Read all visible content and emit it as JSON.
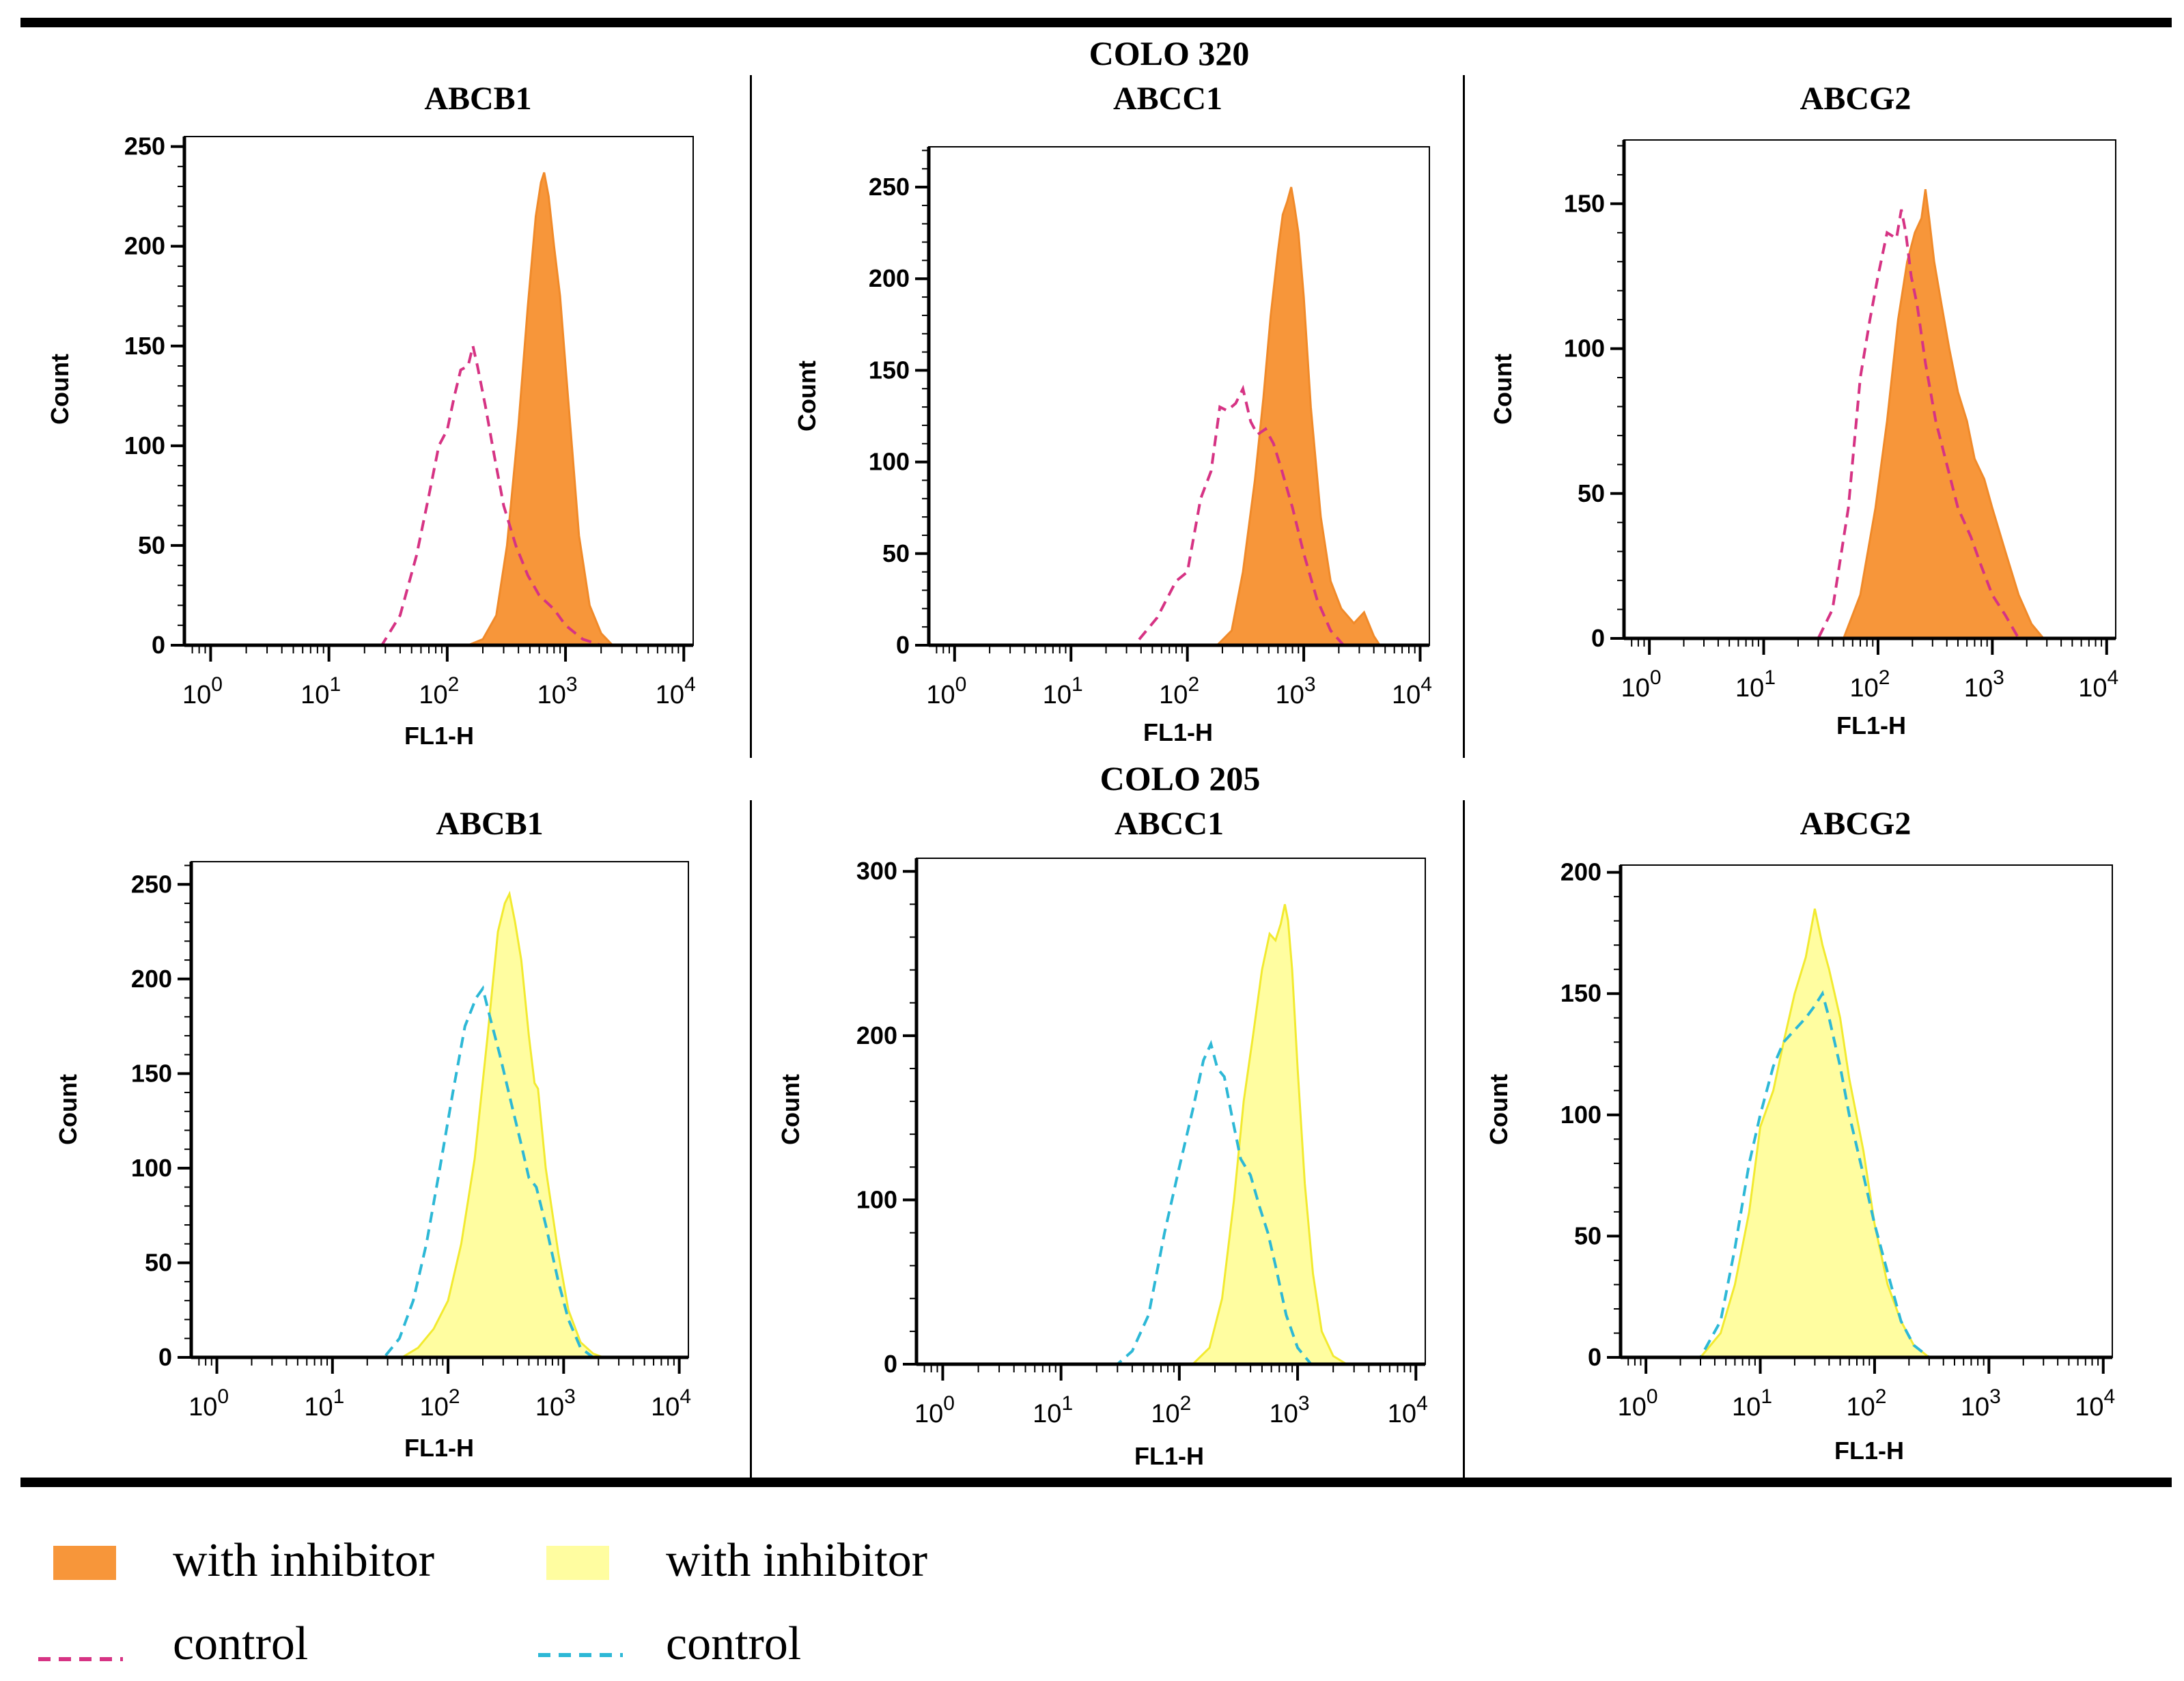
{
  "groups": [
    {
      "title": "COLO 320"
    },
    {
      "title": "COLO 205"
    }
  ],
  "colors": {
    "orange_fill": "#F7963A",
    "orange_edge": "#F08A2A",
    "magenta_dash": "#D63384",
    "yellow_fill": "#FFFDA0",
    "yellow_edge": "#F2EA30",
    "cyan_dash": "#2DB8D6"
  },
  "legend": [
    {
      "label": "with inhibitor",
      "kind": "fill",
      "color": "#F7963A"
    },
    {
      "label": "control",
      "kind": "dash",
      "color": "#D63384"
    },
    {
      "label": "with inhibitor",
      "kind": "fill",
      "color": "#FFFDA0"
    },
    {
      "label": "control",
      "kind": "dash",
      "color": "#2DB8D6"
    }
  ],
  "chart_data": [
    {
      "type": "area",
      "group": "COLO 320",
      "title": "ABCB1",
      "xlabel": "FL1-H",
      "ylabel": "Count",
      "x_scale": "log",
      "xlim": [
        0.6,
        12000
      ],
      "ylim": [
        0,
        255
      ],
      "yticks": [
        0,
        50,
        100,
        150,
        200,
        250
      ],
      "xticks": [
        {
          "base": "10",
          "exp": "0"
        },
        {
          "base": "10",
          "exp": "1"
        },
        {
          "base": "10",
          "exp": "2"
        },
        {
          "base": "10",
          "exp": "3"
        },
        {
          "base": "10",
          "exp": "4"
        }
      ],
      "series": [
        {
          "name": "with inhibitor",
          "style": "fill",
          "fill": "#F7963A",
          "stroke": "#F08A2A",
          "x": [
            0.6,
            150,
            200,
            260,
            320,
            400,
            480,
            560,
            620,
            660,
            720,
            800,
            900,
            1000,
            1150,
            1300,
            1600,
            2000,
            2500,
            12000
          ],
          "y": [
            0,
            0,
            3,
            15,
            50,
            110,
            170,
            215,
            232,
            237,
            225,
            200,
            175,
            140,
            95,
            55,
            20,
            6,
            0,
            0
          ]
        },
        {
          "name": "control",
          "style": "dash",
          "stroke": "#D63384",
          "x": [
            0.6,
            28,
            40,
            55,
            70,
            85,
            100,
            115,
            130,
            150,
            165,
            180,
            210,
            250,
            300,
            380,
            480,
            600,
            800,
            1000,
            1400,
            2000,
            12000
          ],
          "y": [
            0,
            0,
            15,
            45,
            75,
            100,
            108,
            125,
            138,
            140,
            150,
            140,
            120,
            95,
            70,
            50,
            35,
            25,
            18,
            10,
            3,
            0,
            0
          ]
        }
      ]
    },
    {
      "type": "area",
      "group": "COLO 320",
      "title": "ABCC1",
      "xlabel": "FL1-H",
      "ylabel": "Count",
      "x_scale": "log",
      "xlim": [
        0.6,
        12000
      ],
      "ylim": [
        0,
        272
      ],
      "yticks": [
        0,
        50,
        100,
        150,
        200,
        250
      ],
      "xticks": [
        {
          "base": "10",
          "exp": "0"
        },
        {
          "base": "10",
          "exp": "1"
        },
        {
          "base": "10",
          "exp": "2"
        },
        {
          "base": "10",
          "exp": "3"
        },
        {
          "base": "10",
          "exp": "4"
        }
      ],
      "series": [
        {
          "name": "with inhibitor",
          "style": "fill",
          "fill": "#F7963A",
          "stroke": "#F08A2A",
          "x": [
            0.6,
            180,
            240,
            300,
            380,
            450,
            520,
            600,
            660,
            720,
            780,
            830,
            900,
            1000,
            1150,
            1400,
            1700,
            2100,
            2700,
            3300,
            4000,
            4500,
            12000
          ],
          "y": [
            0,
            0,
            8,
            40,
            90,
            135,
            180,
            215,
            235,
            242,
            250,
            240,
            225,
            190,
            130,
            70,
            35,
            20,
            12,
            18,
            5,
            0,
            0
          ]
        },
        {
          "name": "control",
          "style": "dash",
          "stroke": "#D63384",
          "x": [
            0.6,
            35,
            55,
            80,
            100,
            130,
            160,
            190,
            220,
            260,
            300,
            350,
            400,
            470,
            550,
            650,
            800,
            1000,
            1300,
            1700,
            2200,
            12000
          ],
          "y": [
            0,
            0,
            15,
            35,
            40,
            80,
            95,
            130,
            128,
            132,
            140,
            122,
            115,
            118,
            110,
            95,
            75,
            50,
            25,
            8,
            0,
            0
          ]
        }
      ]
    },
    {
      "type": "area",
      "group": "COLO 320",
      "title": "ABCG2",
      "xlabel": "FL1-H",
      "ylabel": "Count",
      "x_scale": "log",
      "xlim": [
        0.6,
        12000
      ],
      "ylim": [
        0,
        172
      ],
      "yticks": [
        0,
        50,
        100,
        150
      ],
      "xticks": [
        {
          "base": "10",
          "exp": "0"
        },
        {
          "base": "10",
          "exp": "1"
        },
        {
          "base": "10",
          "exp": "2"
        },
        {
          "base": "10",
          "exp": "3"
        },
        {
          "base": "10",
          "exp": "4"
        }
      ],
      "series": [
        {
          "name": "with inhibitor",
          "style": "fill",
          "fill": "#F7963A",
          "stroke": "#F08A2A",
          "x": [
            0.6,
            50,
            70,
            95,
            120,
            150,
            180,
            210,
            240,
            260,
            280,
            310,
            360,
            420,
            500,
            600,
            700,
            850,
            1000,
            1300,
            1700,
            2200,
            2800,
            12000
          ],
          "y": [
            0,
            0,
            15,
            45,
            75,
            110,
            130,
            140,
            145,
            155,
            145,
            130,
            115,
            100,
            85,
            75,
            62,
            55,
            45,
            30,
            15,
            5,
            0,
            0
          ]
        },
        {
          "name": "control",
          "style": "dash",
          "stroke": "#D63384",
          "x": [
            0.6,
            30,
            40,
            55,
            70,
            85,
            100,
            120,
            145,
            160,
            175,
            195,
            220,
            260,
            320,
            400,
            500,
            650,
            800,
            1000,
            1300,
            1700,
            12000
          ],
          "y": [
            0,
            0,
            10,
            45,
            90,
            110,
            125,
            140,
            138,
            148,
            140,
            125,
            115,
            95,
            75,
            60,
            45,
            35,
            25,
            15,
            8,
            0,
            0
          ]
        }
      ]
    },
    {
      "type": "area",
      "group": "COLO 205",
      "title": "ABCB1",
      "xlabel": "FL1-H",
      "ylabel": "Count",
      "x_scale": "log",
      "xlim": [
        0.6,
        12000
      ],
      "ylim": [
        0,
        262
      ],
      "yticks": [
        0,
        50,
        100,
        150,
        200,
        250
      ],
      "xticks": [
        {
          "base": "10",
          "exp": "0"
        },
        {
          "base": "10",
          "exp": "1"
        },
        {
          "base": "10",
          "exp": "2"
        },
        {
          "base": "10",
          "exp": "3"
        },
        {
          "base": "10",
          "exp": "4"
        }
      ],
      "series": [
        {
          "name": "with inhibitor",
          "style": "fill",
          "fill": "#FFFDA0",
          "stroke": "#F2EA30",
          "x": [
            0.6,
            40,
            55,
            75,
            100,
            130,
            170,
            220,
            270,
            310,
            340,
            380,
            430,
            500,
            560,
            600,
            700,
            900,
            1100,
            1400,
            1800,
            2200,
            12000
          ],
          "y": [
            0,
            0,
            5,
            15,
            30,
            60,
            105,
            170,
            225,
            240,
            245,
            230,
            210,
            170,
            145,
            142,
            100,
            55,
            25,
            8,
            2,
            0,
            0
          ]
        },
        {
          "name": "control",
          "style": "dash",
          "stroke": "#2DB8D6",
          "x": [
            0.6,
            28,
            38,
            50,
            65,
            85,
            110,
            140,
            175,
            200,
            230,
            280,
            350,
            420,
            500,
            580,
            700,
            900,
            1100,
            1400,
            1800,
            12000
          ],
          "y": [
            0,
            0,
            10,
            30,
            60,
            100,
            140,
            175,
            190,
            195,
            180,
            160,
            135,
            115,
            95,
            90,
            70,
            40,
            20,
            5,
            0,
            0
          ]
        }
      ]
    },
    {
      "type": "area",
      "group": "COLO 205",
      "title": "ABCC1",
      "xlabel": "FL1-H",
      "ylabel": "Count",
      "x_scale": "log",
      "xlim": [
        0.6,
        12000
      ],
      "ylim": [
        0,
        308
      ],
      "yticks": [
        0,
        100,
        200,
        300
      ],
      "xticks": [
        {
          "base": "10",
          "exp": "0"
        },
        {
          "base": "10",
          "exp": "1"
        },
        {
          "base": "10",
          "exp": "2"
        },
        {
          "base": "10",
          "exp": "3"
        },
        {
          "base": "10",
          "exp": "4"
        }
      ],
      "series": [
        {
          "name": "with inhibitor",
          "style": "fill",
          "fill": "#FFFDA0",
          "stroke": "#F2EA30",
          "x": [
            0.6,
            130,
            180,
            230,
            290,
            350,
            420,
            500,
            580,
            650,
            720,
            780,
            830,
            900,
            1000,
            1150,
            1350,
            1600,
            2000,
            2600,
            12000
          ],
          "y": [
            0,
            0,
            10,
            40,
            100,
            160,
            200,
            240,
            262,
            258,
            268,
            280,
            270,
            240,
            180,
            110,
            55,
            20,
            5,
            0,
            0
          ]
        },
        {
          "name": "control",
          "style": "dash",
          "stroke": "#2DB8D6",
          "x": [
            0.6,
            30,
            40,
            55,
            75,
            100,
            130,
            160,
            185,
            210,
            240,
            280,
            330,
            400,
            480,
            560,
            650,
            800,
            1000,
            1300,
            12000
          ],
          "y": [
            0,
            0,
            8,
            30,
            80,
            120,
            155,
            185,
            195,
            180,
            175,
            150,
            125,
            115,
            95,
            80,
            60,
            30,
            10,
            0,
            0
          ]
        }
      ]
    },
    {
      "type": "area",
      "group": "COLO 205",
      "title": "ABCG2",
      "xlabel": "FL1-H",
      "ylabel": "Count",
      "x_scale": "log",
      "xlim": [
        0.6,
        12000
      ],
      "ylim": [
        0,
        203
      ],
      "yticks": [
        0,
        50,
        100,
        150,
        200
      ],
      "xticks": [
        {
          "base": "10",
          "exp": "0"
        },
        {
          "base": "10",
          "exp": "1"
        },
        {
          "base": "10",
          "exp": "2"
        },
        {
          "base": "10",
          "exp": "3"
        },
        {
          "base": "10",
          "exp": "4"
        }
      ],
      "series": [
        {
          "name": "with inhibitor",
          "style": "fill",
          "fill": "#FFFDA0",
          "stroke": "#F2EA30",
          "x": [
            0.6,
            3,
            4.5,
            6,
            8,
            10,
            13,
            16,
            20,
            25,
            30,
            35,
            40,
            50,
            60,
            80,
            100,
            130,
            170,
            220,
            300,
            12000
          ],
          "y": [
            0,
            0,
            10,
            30,
            60,
            95,
            110,
            130,
            150,
            165,
            185,
            170,
            160,
            140,
            115,
            85,
            55,
            30,
            15,
            5,
            0,
            0
          ]
        },
        {
          "name": "control",
          "style": "dash",
          "stroke": "#2DB8D6",
          "x": [
            0.6,
            3,
            4.5,
            6,
            8,
            10,
            13,
            16,
            20,
            25,
            30,
            35,
            40,
            50,
            60,
            80,
            100,
            130,
            170,
            220,
            300,
            12000
          ],
          "y": [
            0,
            0,
            15,
            45,
            80,
            100,
            120,
            130,
            135,
            140,
            145,
            150,
            140,
            120,
            100,
            75,
            55,
            35,
            15,
            5,
            0,
            0
          ]
        }
      ]
    }
  ]
}
